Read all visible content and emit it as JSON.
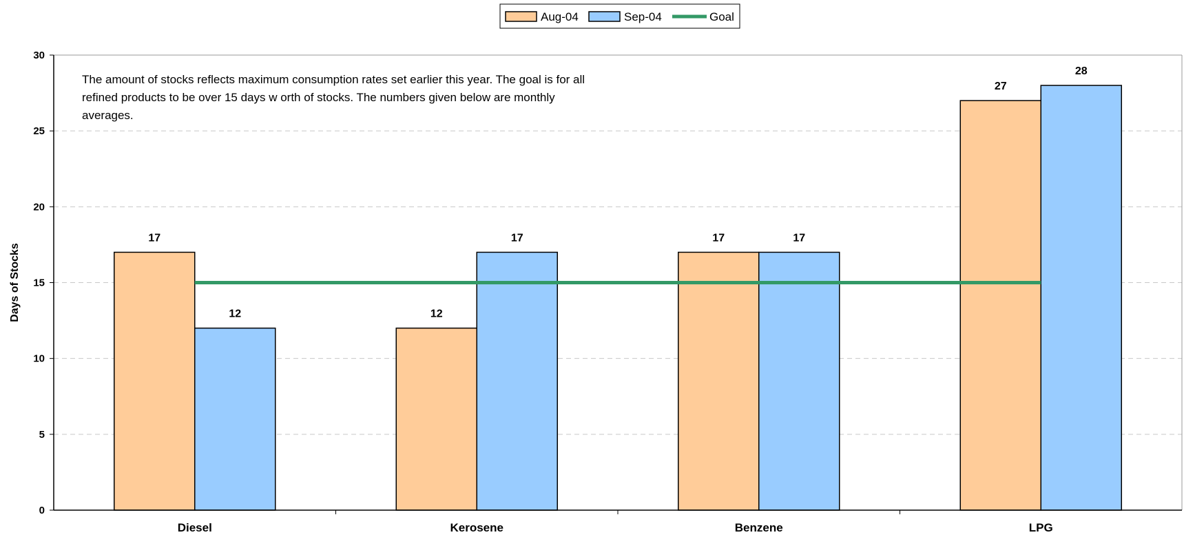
{
  "chart_data": {
    "type": "bar",
    "categories": [
      "Diesel",
      "Kerosene",
      "Benzene",
      "LPG"
    ],
    "series": [
      {
        "name": "Aug-04",
        "values": [
          17,
          12,
          17,
          27
        ],
        "color": "#FFCC99"
      },
      {
        "name": "Sep-04",
        "values": [
          12,
          17,
          17,
          28
        ],
        "color": "#99CCFF"
      }
    ],
    "lines": [
      {
        "name": "Goal",
        "value": 15,
        "color": "#339966"
      }
    ],
    "ylabel": "Days of Stocks",
    "xlabel": "",
    "ylim": [
      0,
      30
    ],
    "yticks": [
      0,
      5,
      10,
      15,
      20,
      25,
      30
    ],
    "grid": "horizontal dashed",
    "legend": "top-center",
    "annotation": [
      "The amount of stocks reflects maximum consumption rates set earlier this year.  The goal is for all",
      "refined products to be over 15 days w orth of stocks.  The numbers given below  are monthly",
      "averages."
    ]
  }
}
